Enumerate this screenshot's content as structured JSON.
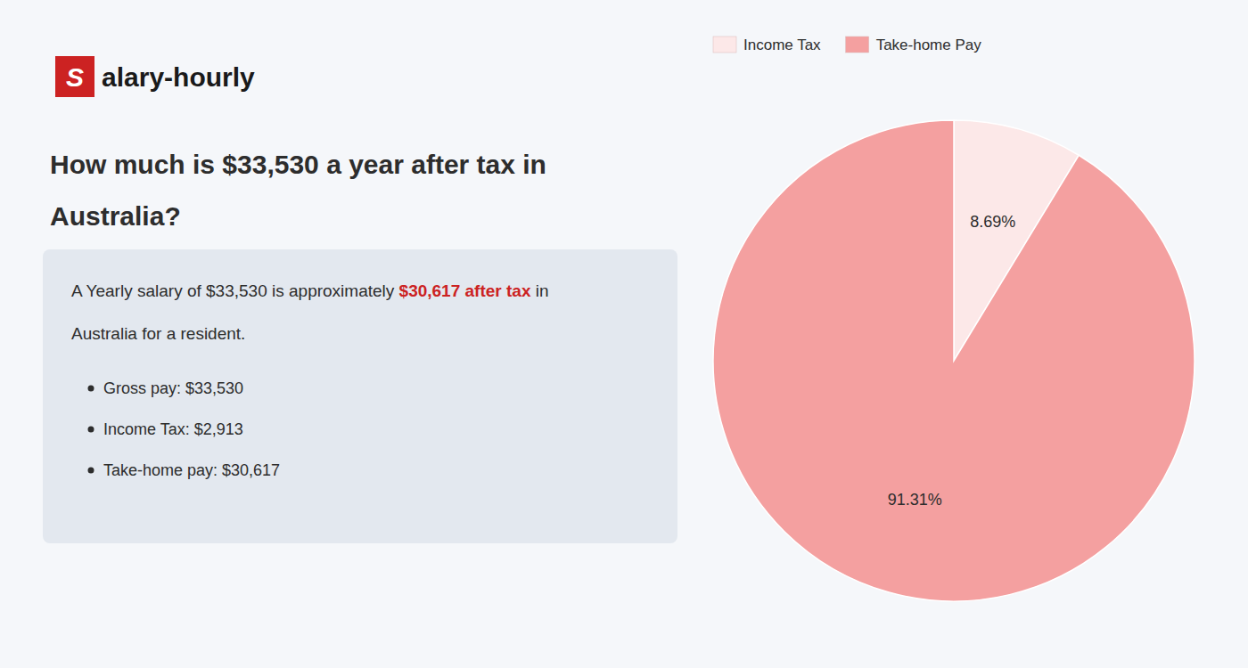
{
  "logo": {
    "text": "S",
    "brand": "alary-hourly",
    "color": "#cc2222"
  },
  "summary": {
    "lines": [
      [
        {
          "text": "A Yearly salary of $33,530 is approximately "
        },
        {
          "text": "$30,617 after tax",
          "color": "#cc2222"
        },
        {
          "text": " in"
        }
      ],
      [
        {
          "text": "Australia for a resident."
        }
      ]
    ],
    "bullets": [
      "Gross pay: $33,530",
      "Income Tax: $2,913",
      "Take-home pay: $30,617"
    ]
  },
  "chart_data": {
    "type": "pie",
    "title": [
      "How much is $33,530 a year after tax in",
      "Australia?"
    ],
    "categories": [
      "Income Tax",
      "Take-home Pay"
    ],
    "values": [
      8.69,
      91.31
    ],
    "value_labels": [
      "8.69%",
      "91.31%"
    ],
    "colors": [
      "#fce8e8",
      "#f4a0a0"
    ],
    "data_labels": true,
    "legend": "upper left"
  }
}
